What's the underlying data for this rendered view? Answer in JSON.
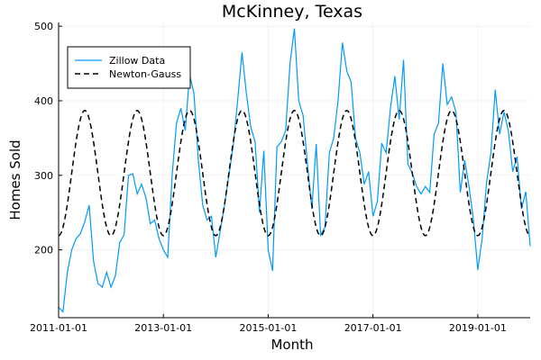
{
  "chart_data": {
    "type": "line",
    "title": "McKinney, Texas",
    "xlabel": "Month",
    "ylabel": "Homes Sold",
    "xlim": [
      "2011-01-01",
      "2020-01-01"
    ],
    "ylim": [
      109,
      505
    ],
    "x_ticks": [
      "2011-01-01",
      "2013-01-01",
      "2015-01-01",
      "2017-01-01",
      "2019-01-01"
    ],
    "y_ticks": [
      200,
      300,
      400,
      500
    ],
    "grid": true,
    "legend_position": "top-left",
    "series": [
      {
        "name": "Zillow Data",
        "color": "#009af9",
        "style": "solid",
        "points": [
          [
            "2011-01-01",
            123
          ],
          [
            "2011-02-01",
            117
          ],
          [
            "2011-03-01",
            170
          ],
          [
            "2011-04-01",
            200
          ],
          [
            "2011-05-01",
            215
          ],
          [
            "2011-06-01",
            222
          ],
          [
            "2011-07-01",
            238
          ],
          [
            "2011-08-01",
            260
          ],
          [
            "2011-09-01",
            185
          ],
          [
            "2011-10-01",
            155
          ],
          [
            "2011-11-01",
            150
          ],
          [
            "2011-12-01",
            170
          ],
          [
            "2012-01-01",
            150
          ],
          [
            "2012-02-01",
            165
          ],
          [
            "2012-03-01",
            210
          ],
          [
            "2012-04-01",
            220
          ],
          [
            "2012-05-01",
            300
          ],
          [
            "2012-06-01",
            302
          ],
          [
            "2012-07-01",
            275
          ],
          [
            "2012-08-01",
            288
          ],
          [
            "2012-09-01",
            270
          ],
          [
            "2012-10-01",
            235
          ],
          [
            "2012-11-01",
            240
          ],
          [
            "2012-12-01",
            215
          ],
          [
            "2013-01-01",
            200
          ],
          [
            "2013-02-01",
            190
          ],
          [
            "2013-03-01",
            300
          ],
          [
            "2013-04-01",
            370
          ],
          [
            "2013-05-01",
            390
          ],
          [
            "2013-06-01",
            360
          ],
          [
            "2013-07-01",
            435
          ],
          [
            "2013-08-01",
            410
          ],
          [
            "2013-09-01",
            320
          ],
          [
            "2013-10-01",
            260
          ],
          [
            "2013-11-01",
            240
          ],
          [
            "2013-12-01",
            245
          ],
          [
            "2014-01-01",
            190
          ],
          [
            "2014-02-01",
            225
          ],
          [
            "2014-03-01",
            260
          ],
          [
            "2014-04-01",
            300
          ],
          [
            "2014-05-01",
            340
          ],
          [
            "2014-06-01",
            400
          ],
          [
            "2014-07-01",
            465
          ],
          [
            "2014-08-01",
            410
          ],
          [
            "2014-09-01",
            365
          ],
          [
            "2014-10-01",
            345
          ],
          [
            "2014-11-01",
            250
          ],
          [
            "2014-12-01",
            333
          ],
          [
            "2015-01-01",
            200
          ],
          [
            "2015-02-01",
            172
          ],
          [
            "2015-03-01",
            338
          ],
          [
            "2015-04-01",
            345
          ],
          [
            "2015-05-01",
            360
          ],
          [
            "2015-06-01",
            450
          ],
          [
            "2015-07-01",
            497
          ],
          [
            "2015-08-01",
            400
          ],
          [
            "2015-09-01",
            380
          ],
          [
            "2015-10-01",
            315
          ],
          [
            "2015-11-01",
            255
          ],
          [
            "2015-12-01",
            342
          ],
          [
            "2016-01-01",
            220
          ],
          [
            "2016-02-01",
            230
          ],
          [
            "2016-03-01",
            330
          ],
          [
            "2016-04-01",
            350
          ],
          [
            "2016-05-01",
            400
          ],
          [
            "2016-06-01",
            478
          ],
          [
            "2016-07-01",
            440
          ],
          [
            "2016-08-01",
            425
          ],
          [
            "2016-09-01",
            350
          ],
          [
            "2016-10-01",
            330
          ],
          [
            "2016-11-01",
            288
          ],
          [
            "2016-12-01",
            305
          ],
          [
            "2017-01-01",
            245
          ],
          [
            "2017-02-01",
            265
          ],
          [
            "2017-03-01",
            343
          ],
          [
            "2017-04-01",
            330
          ],
          [
            "2017-05-01",
            390
          ],
          [
            "2017-06-01",
            433
          ],
          [
            "2017-07-01",
            375
          ],
          [
            "2017-08-01",
            455
          ],
          [
            "2017-09-01",
            315
          ],
          [
            "2017-10-01",
            303
          ],
          [
            "2017-11-01",
            285
          ],
          [
            "2017-12-01",
            275
          ],
          [
            "2018-01-01",
            285
          ],
          [
            "2018-02-01",
            277
          ],
          [
            "2018-03-01",
            355
          ],
          [
            "2018-04-01",
            370
          ],
          [
            "2018-05-01",
            450
          ],
          [
            "2018-06-01",
            395
          ],
          [
            "2018-07-01",
            405
          ],
          [
            "2018-08-01",
            385
          ],
          [
            "2018-09-01",
            277
          ],
          [
            "2018-10-01",
            320
          ],
          [
            "2018-11-01",
            285
          ],
          [
            "2018-12-01",
            240
          ],
          [
            "2019-01-01",
            173
          ],
          [
            "2019-02-01",
            215
          ],
          [
            "2019-03-01",
            290
          ],
          [
            "2019-04-01",
            330
          ],
          [
            "2019-05-01",
            415
          ],
          [
            "2019-06-01",
            355
          ],
          [
            "2019-07-01",
            385
          ],
          [
            "2019-08-01",
            360
          ],
          [
            "2019-09-01",
            305
          ],
          [
            "2019-10-01",
            325
          ],
          [
            "2019-11-01",
            255
          ],
          [
            "2019-12-01",
            278
          ],
          [
            "2020-01-01",
            205
          ]
        ]
      },
      {
        "name": "Newton-Gauss",
        "color": "#000000",
        "style": "dashed",
        "model": {
          "type": "sinusoid",
          "mean": 303,
          "amplitude": 84,
          "period_months": 12,
          "peak_month_offset": 6
        }
      }
    ]
  }
}
